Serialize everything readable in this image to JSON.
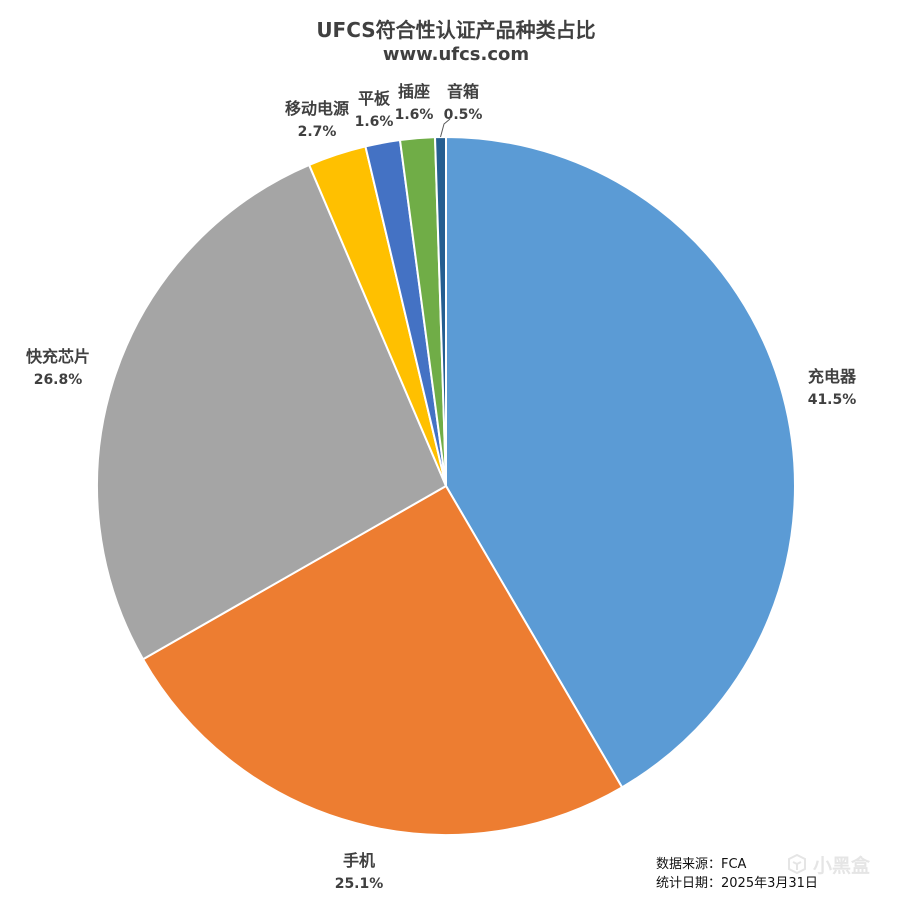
{
  "chart_data": {
    "type": "pie",
    "title": "UFCS符合性认证产品种类占比",
    "subtitle": "www.ufcs.com",
    "categories": [
      "充电器",
      "手机",
      "快充芯片",
      "移动电源",
      "平板",
      "插座",
      "音箱"
    ],
    "values": [
      41.5,
      25.1,
      26.8,
      2.7,
      1.6,
      1.6,
      0.5
    ],
    "value_labels": [
      "41.5%",
      "25.1%",
      "26.8%",
      "2.7%",
      "1.6%",
      "1.6%",
      "0.5%"
    ],
    "colors": [
      "#5B9BD5",
      "#ED7D31",
      "#A5A5A5",
      "#FFC000",
      "#4472C4",
      "#70AD47",
      "#255E91"
    ],
    "start_angle": "12 o'clock",
    "direction": "clockwise",
    "legend": "none"
  },
  "footer": {
    "source": "数据来源：FCA",
    "date": "统计日期：2025年3月31日"
  },
  "watermark": {
    "text": "小黑盒",
    "icon": "box-logo-icon"
  }
}
